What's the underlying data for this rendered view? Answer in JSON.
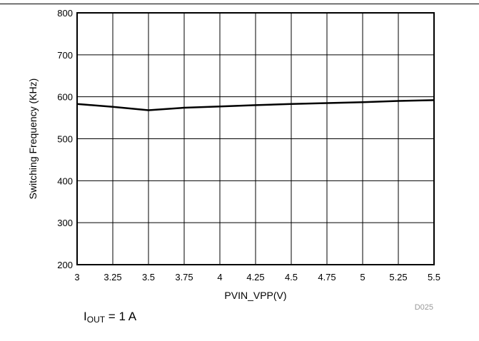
{
  "chart_data": {
    "type": "line",
    "title": "",
    "xlabel": "PVIN_VPP(V)",
    "ylabel": "Switching Frequency (KHz)",
    "xlim": [
      3,
      5.5
    ],
    "ylim": [
      200,
      800
    ],
    "x_ticks": [
      "3",
      "3.25",
      "3.5",
      "3.75",
      "4",
      "4.25",
      "4.5",
      "4.75",
      "5",
      "5.25",
      "5.5"
    ],
    "y_ticks": [
      "200",
      "300",
      "400",
      "500",
      "600",
      "700",
      "800"
    ],
    "grid": true,
    "series": [
      {
        "x": [
          3.0,
          3.25,
          3.5,
          3.75,
          4.0,
          4.25,
          4.5,
          4.75,
          5.0,
          5.25,
          5.5
        ],
        "y": [
          583,
          576,
          568,
          574,
          577,
          580,
          583,
          585,
          587,
          590,
          592
        ]
      }
    ],
    "figure_id": "D025"
  },
  "condition": {
    "symbol": "I",
    "subscript": "OUT",
    "rest": " = 1 A"
  }
}
